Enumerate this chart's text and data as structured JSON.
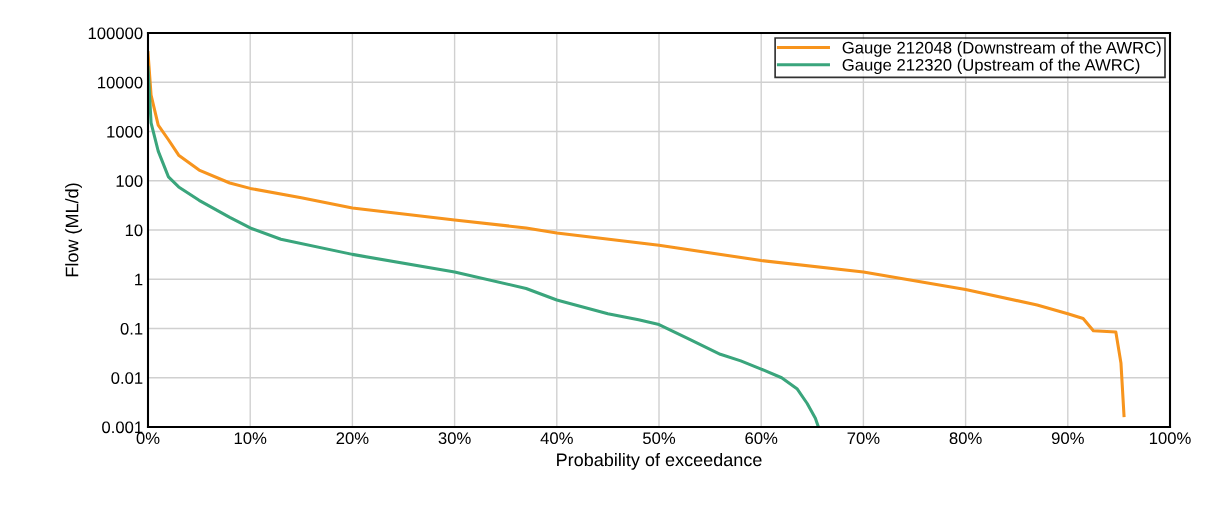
{
  "chart_data": {
    "type": "line",
    "xlabel": "Probability of exceedance",
    "ylabel": "Flow (ML/d)",
    "log": "y",
    "grid": true,
    "legend": "top right",
    "xlim": [
      0,
      100
    ],
    "xticks": [
      {
        "value": 0,
        "label": "0%"
      },
      {
        "value": 10,
        "label": "10%"
      },
      {
        "value": 20,
        "label": "20%"
      },
      {
        "value": 30,
        "label": "30%"
      },
      {
        "value": 40,
        "label": "40%"
      },
      {
        "value": 50,
        "label": "50%"
      },
      {
        "value": 60,
        "label": "60%"
      },
      {
        "value": 70,
        "label": "70%"
      },
      {
        "value": 80,
        "label": "80%"
      },
      {
        "value": 90,
        "label": "90%"
      },
      {
        "value": 100,
        "label": "100%"
      }
    ],
    "ylim": [
      0.001,
      100000
    ],
    "yticks": [
      0.001,
      0.01,
      0.1,
      1,
      10,
      100,
      1000,
      10000,
      100000
    ],
    "series": [
      {
        "name": "Gauge 212048 (Downstream of the AWRC)",
        "color": "#f7941d",
        "x": [
          0,
          0.3,
          1,
          2,
          3,
          5,
          8,
          10,
          15,
          20,
          30,
          37,
          40,
          50,
          60,
          70,
          80,
          87,
          90,
          91.5,
          92.5,
          94.7,
          95.2,
          95.5
        ],
        "values": [
          40000,
          5500,
          1350,
          680,
          330,
          165,
          90,
          70,
          45,
          28,
          16,
          11,
          8.7,
          4.9,
          2.4,
          1.4,
          0.62,
          0.3,
          0.2,
          0.16,
          0.09,
          0.085,
          0.02,
          0.0017
        ]
      },
      {
        "name": "Gauge 212320 (Upstream of the AWRC)",
        "color": "#3aa57c",
        "x": [
          0,
          0.3,
          1,
          2,
          3,
          5,
          8,
          10,
          13,
          20,
          30,
          37,
          40,
          45,
          48,
          50,
          53,
          56,
          58,
          60,
          62,
          63.5,
          64.5,
          65.3,
          65.6
        ],
        "values": [
          20000,
          1500,
          400,
          120,
          75,
          40,
          18,
          11,
          6.5,
          3.2,
          1.4,
          0.65,
          0.38,
          0.2,
          0.15,
          0.12,
          0.06,
          0.03,
          0.022,
          0.015,
          0.01,
          0.006,
          0.003,
          0.0015,
          0.001
        ]
      }
    ]
  }
}
